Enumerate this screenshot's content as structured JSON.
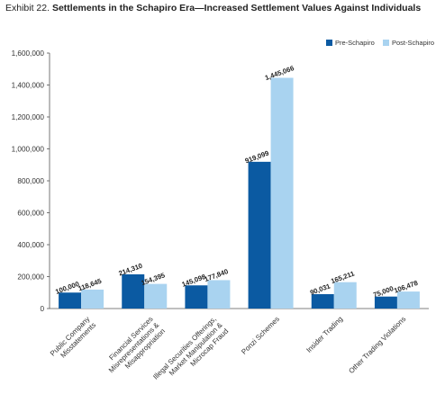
{
  "title": {
    "number": "Exhibit 22.",
    "text": "Settlements in the Schapiro Era—Increased Settlement Values Against Individuals"
  },
  "chart_data": {
    "type": "bar",
    "categories": [
      [
        "Public Company",
        "Misstatements"
      ],
      [
        "Financial Services",
        "Misrepresentations &",
        "Misappropriation"
      ],
      [
        "Illegal Securities Offerings,",
        "Market Manipulation &",
        "Microcap Fraud"
      ],
      [
        "Ponzi Schemes"
      ],
      [
        "Insider Trading"
      ],
      [
        "Other Trading Violations"
      ]
    ],
    "series": [
      {
        "name": "Pre-Schapiro",
        "color": "#0b5aa2",
        "values": [
          100000,
          214310,
          145098,
          919099,
          90031,
          75000
        ],
        "labels": [
          "100,000",
          "214,310",
          "145,098",
          "919,099",
          "90,031",
          "75,000"
        ]
      },
      {
        "name": "Post-Schapiro",
        "color": "#a9d3f0",
        "values": [
          118645,
          154395,
          177840,
          1445066,
          165211,
          106478
        ],
        "labels": [
          "118,645",
          "154,395",
          "177,840",
          "1,445,066",
          "165,211",
          "106,478"
        ]
      }
    ],
    "yticks": [
      "0",
      "200,000",
      "400,000",
      "600,000",
      "800,000",
      "1,000,000",
      "1,200,000",
      "1,400,000",
      "1,600,000"
    ],
    "ylim": [
      0,
      1600000
    ],
    "legend_position": "top-right",
    "grid": false
  }
}
